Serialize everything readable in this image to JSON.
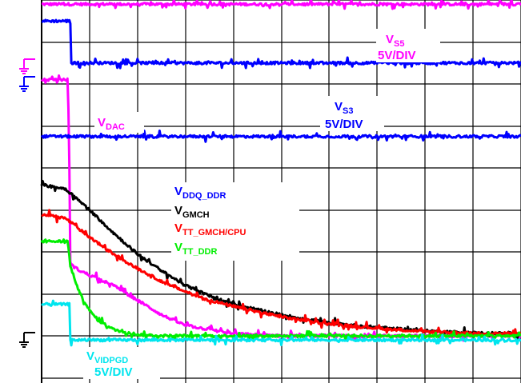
{
  "chart_data": {
    "type": "line",
    "title": "",
    "xlabel": "",
    "ylabel": "",
    "grid": true,
    "x_divisions": 10,
    "y_divisions": 8,
    "xlim": [
      0,
      10
    ],
    "ylim": [
      0,
      8
    ],
    "series": [
      {
        "key": "vs5",
        "name_main": "V",
        "name_sub": "S5",
        "scale": "5V/DIV",
        "color": "#ff00ff",
        "x": [
          0,
          10
        ],
        "y": [
          7.9,
          7.9
        ]
      },
      {
        "key": "vs3",
        "name_main": "V",
        "name_sub": "S3",
        "scale": "5V/DIV",
        "color": "#0000ff",
        "x": [
          0,
          0.6,
          0.62,
          10
        ],
        "y": [
          7.5,
          7.5,
          6.5,
          6.5
        ]
      },
      {
        "key": "vdac",
        "name_main": "V",
        "name_sub": "DAC",
        "scale": "",
        "color": "#ff00ff",
        "x": [
          0,
          0.55,
          0.58,
          0.6,
          0.8,
          1.0,
          1.5,
          2.0,
          2.5,
          3.0,
          4.0,
          5.0,
          10
        ],
        "y": [
          6.1,
          6.1,
          4.0,
          1.7,
          1.55,
          1.45,
          1.2,
          0.85,
          0.5,
          0.25,
          0.05,
          0.0,
          0.0
        ]
      },
      {
        "key": "vs3_2",
        "name_main": "",
        "name_sub": "",
        "scale": "",
        "color": "#0000ff",
        "x": [
          0,
          10
        ],
        "y": [
          4.75,
          4.75
        ]
      },
      {
        "key": "vddq",
        "name_main": "V",
        "name_sub": "DDQ_DDR",
        "scale": "",
        "color": "#0000ff",
        "x": [],
        "y": []
      },
      {
        "key": "vgmch",
        "name_main": "V",
        "name_sub": "GMCH",
        "scale": "",
        "color": "#000000",
        "x": [
          0,
          0.5,
          1.0,
          1.5,
          2.0,
          2.5,
          3.0,
          3.5,
          4.0,
          5.0,
          6.0,
          7.0,
          8.0,
          9.0,
          10
        ],
        "y": [
          3.6,
          3.5,
          3.0,
          2.45,
          1.95,
          1.55,
          1.2,
          0.95,
          0.75,
          0.5,
          0.3,
          0.2,
          0.12,
          0.07,
          0.05
        ]
      },
      {
        "key": "vtt_gmch",
        "name_main": "V",
        "name_sub": "TT_GMCH/CPU",
        "scale": "",
        "color": "#ff0000",
        "x": [
          0,
          0.5,
          1.0,
          1.5,
          2.0,
          2.5,
          3.0,
          3.5,
          4.0,
          5.0,
          6.0,
          7.0,
          8.0,
          9.0,
          10
        ],
        "y": [
          2.9,
          2.8,
          2.35,
          1.95,
          1.6,
          1.3,
          1.05,
          0.85,
          0.7,
          0.45,
          0.28,
          0.18,
          0.1,
          0.06,
          0.05
        ]
      },
      {
        "key": "vtt_ddr",
        "name_main": "V",
        "name_sub": "TT_DDR",
        "scale": "",
        "color": "#00ee00",
        "x": [
          0,
          0.55,
          0.6,
          0.8,
          1.0,
          1.2,
          1.5,
          2.0,
          2.5,
          3.0,
          10
        ],
        "y": [
          2.25,
          2.25,
          1.65,
          1.0,
          0.6,
          0.35,
          0.15,
          0.03,
          0.0,
          0.0,
          0.0
        ]
      },
      {
        "key": "vvidpgd",
        "name_main": "V",
        "name_sub": "VIDPGD",
        "scale": "5V/DIV",
        "color": "#00e5ee",
        "x": [
          0,
          0.58,
          0.6,
          10
        ],
        "y": [
          0.75,
          0.75,
          -0.1,
          -0.1
        ]
      }
    ]
  },
  "markers": {
    "ch1_color": "#ff00ff",
    "ch2_color": "#0000ff",
    "ch3_color": "#000000"
  }
}
